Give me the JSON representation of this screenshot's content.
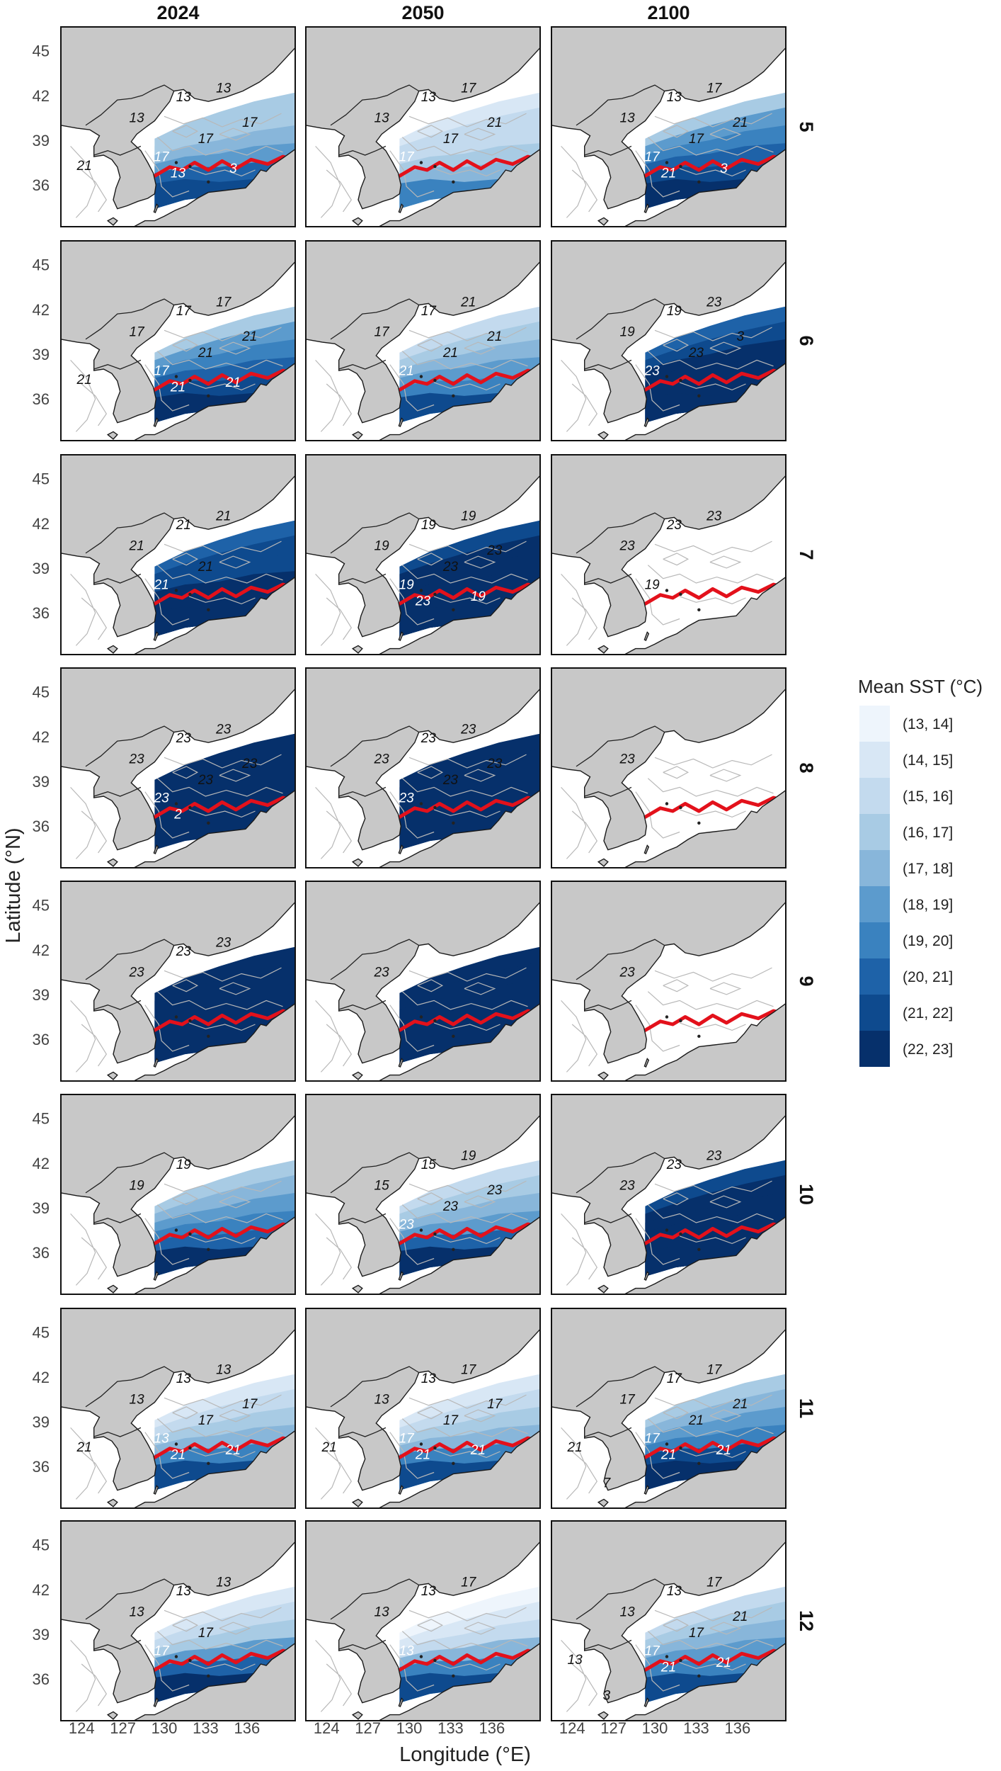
{
  "chart_data": {
    "type": "heatmap",
    "variable": "Mean SST",
    "columns": [
      "2024",
      "2050",
      "2100"
    ],
    "rows": [
      "5",
      "6",
      "7",
      "8",
      "9",
      "10",
      "11",
      "12"
    ],
    "xlabel": "Longitude (°E)",
    "ylabel": "Latitude (°N)",
    "xlim": [
      122.5,
      139.5
    ],
    "ylim": [
      33.2,
      46.6
    ],
    "xticks": [
      "124",
      "127",
      "130",
      "133",
      "136"
    ],
    "yticks": [
      "45",
      "42",
      "39",
      "36"
    ],
    "xtick_values": [
      124,
      127,
      130,
      133,
      136
    ],
    "ytick_values": [
      45,
      42,
      39,
      36
    ],
    "legend": {
      "title": "Mean SST (°C)",
      "position": "right",
      "bins": [
        "(13, 14]",
        "(14, 15]",
        "(15, 16]",
        "(16, 17]",
        "(17, 18]",
        "(18, 19]",
        "(19, 20]",
        "(20, 21]",
        "(21, 22]",
        "(22, 23]"
      ],
      "colors": [
        "#eef5fc",
        "#d8e7f5",
        "#c3daee",
        "#a8cbe4",
        "#88b6da",
        "#5c9bcd",
        "#3a82bf",
        "#1e62a8",
        "#0e4a8e",
        "#06306b"
      ]
    },
    "highlight_contour_color": "#e3111b",
    "panels": [
      {
        "row": "5",
        "col": "2024",
        "levels": [
          3,
          3,
          4,
          5,
          7,
          8
        ],
        "red_contour": "21",
        "labels": [
          "13",
          "13",
          "13",
          "17",
          "17",
          "17",
          "13",
          "3",
          "21"
        ]
      },
      {
        "row": "5",
        "col": "2050",
        "levels": [
          1,
          2,
          2,
          3,
          4,
          6
        ],
        "red_contour": "21",
        "labels": [
          "13",
          "13",
          "17",
          "17",
          "17",
          "21"
        ]
      },
      {
        "row": "5",
        "col": "2100",
        "levels": [
          3,
          5,
          6,
          7,
          8,
          9
        ],
        "red_contour": "21",
        "labels": [
          "13",
          "13",
          "17",
          "17",
          "17",
          "21",
          "21",
          "3"
        ]
      },
      {
        "row": "6",
        "col": "2024",
        "levels": [
          3,
          5,
          6,
          7,
          8,
          9
        ],
        "red_contour": "21",
        "labels": [
          "17",
          "17",
          "17",
          "17",
          "21",
          "21",
          "21",
          "21",
          "21"
        ]
      },
      {
        "row": "6",
        "col": "2050",
        "levels": [
          2,
          3,
          4,
          5,
          6,
          8
        ],
        "red_contour": "21",
        "labels": [
          "17",
          "17",
          "21",
          "21",
          "21",
          "21"
        ]
      },
      {
        "row": "6",
        "col": "2100",
        "levels": [
          7,
          8,
          9,
          9,
          9,
          9
        ],
        "red_contour": "23",
        "labels": [
          "19",
          "19",
          "23",
          "23",
          "23",
          "3"
        ]
      },
      {
        "row": "7",
        "col": "2024",
        "levels": [
          7,
          8,
          8,
          9,
          9,
          9
        ],
        "red_contour": "21",
        "labels": [
          "21",
          "21",
          "21",
          "21",
          "21"
        ]
      },
      {
        "row": "7",
        "col": "2050",
        "levels": [
          8,
          9,
          9,
          9,
          9,
          9
        ],
        "red_contour": "19",
        "labels": [
          "19",
          "19",
          "19",
          "19",
          "23",
          "23",
          "23",
          "19"
        ]
      },
      {
        "row": "7",
        "col": "2100",
        "levels": [],
        "red_contour": "23",
        "labels": [
          "23",
          "23",
          "23",
          "19"
        ]
      },
      {
        "row": "8",
        "col": "2024",
        "levels": [
          9
        ],
        "red_contour": "23",
        "labels": [
          "23",
          "23",
          "23",
          "23",
          "23",
          "23",
          "2"
        ]
      },
      {
        "row": "8",
        "col": "2050",
        "levels": [
          9,
          9
        ],
        "red_contour": "23",
        "labels": [
          "23",
          "23",
          "23",
          "23",
          "23",
          "23"
        ]
      },
      {
        "row": "8",
        "col": "2100",
        "levels": [],
        "red_contour": "23",
        "labels": [
          "23"
        ]
      },
      {
        "row": "9",
        "col": "2024",
        "levels": [
          9,
          9
        ],
        "red_contour": "23",
        "labels": [
          "23",
          "23",
          "23"
        ]
      },
      {
        "row": "9",
        "col": "2050",
        "levels": [
          9,
          9,
          9
        ],
        "red_contour": "23",
        "labels": [
          "23"
        ]
      },
      {
        "row": "9",
        "col": "2100",
        "levels": [],
        "red_contour": "23",
        "labels": [
          "23"
        ]
      },
      {
        "row": "10",
        "col": "2024",
        "levels": [
          3,
          4,
          5,
          6,
          7,
          9
        ],
        "red_contour": "19",
        "labels": [
          "19",
          "19"
        ]
      },
      {
        "row": "10",
        "col": "2050",
        "levels": [
          2,
          3,
          4,
          5,
          7,
          9
        ],
        "red_contour": "19",
        "labels": [
          "15",
          "15",
          "19",
          "23",
          "23",
          "23"
        ]
      },
      {
        "row": "10",
        "col": "2100",
        "levels": [
          8,
          9,
          9,
          9,
          9,
          9
        ],
        "red_contour": "23",
        "labels": [
          "23",
          "23",
          "23"
        ]
      },
      {
        "row": "11",
        "col": "2024",
        "levels": [
          1,
          2,
          3,
          4,
          6,
          8
        ],
        "red_contour": "21",
        "labels": [
          "13",
          "13",
          "13",
          "13",
          "17",
          "17",
          "21",
          "21",
          "21"
        ]
      },
      {
        "row": "11",
        "col": "2050",
        "levels": [
          1,
          2,
          3,
          4,
          6,
          8
        ],
        "red_contour": "21",
        "labels": [
          "13",
          "13",
          "17",
          "17",
          "17",
          "17",
          "21",
          "21",
          "21"
        ]
      },
      {
        "row": "11",
        "col": "2100",
        "levels": [
          3,
          4,
          5,
          6,
          8,
          9
        ],
        "red_contour": "21",
        "labels": [
          "17",
          "17",
          "17",
          "17",
          "21",
          "21",
          "21",
          "21",
          "21",
          "7"
        ]
      },
      {
        "row": "12",
        "col": "2024",
        "levels": [
          1,
          2,
          3,
          5,
          7,
          9
        ],
        "red_contour": "21",
        "labels": [
          "13",
          "13",
          "13",
          "17",
          "17"
        ]
      },
      {
        "row": "12",
        "col": "2050",
        "levels": [
          0,
          1,
          2,
          4,
          6,
          8
        ],
        "red_contour": "21",
        "labels": [
          "13",
          "13",
          "17",
          "13"
        ]
      },
      {
        "row": "12",
        "col": "2100",
        "levels": [
          2,
          3,
          4,
          5,
          6,
          8
        ],
        "red_contour": "21",
        "labels": [
          "13",
          "13",
          "17",
          "17",
          "17",
          "21",
          "21",
          "21",
          "13",
          "3"
        ]
      }
    ]
  }
}
